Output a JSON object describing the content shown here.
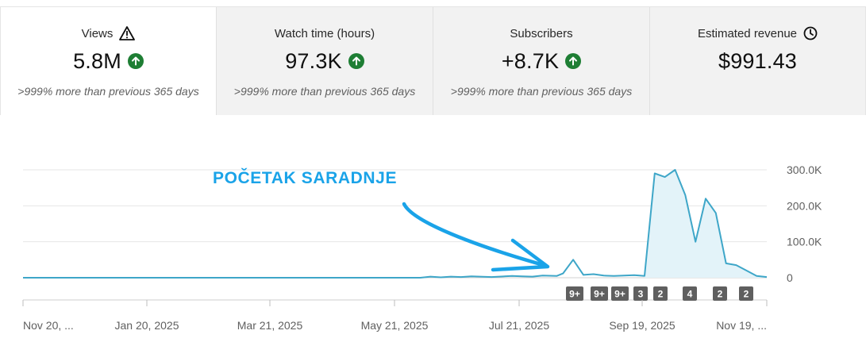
{
  "cards": [
    {
      "title": "Views",
      "title_icon": "warning-icon",
      "value": "5.8M",
      "trend_icon": "arrow-up-icon",
      "sub": ">999% more than previous 365 days"
    },
    {
      "title": "Watch time (hours)",
      "value": "97.3K",
      "trend_icon": "arrow-up-icon",
      "sub": ">999% more than previous 365 days"
    },
    {
      "title": "Subscribers",
      "value": "+8.7K",
      "trend_icon": "arrow-up-icon",
      "sub": ">999% more than previous 365 days"
    },
    {
      "title": "Estimated revenue",
      "title_icon": "clock-icon",
      "value": "$991.43"
    }
  ],
  "annotation": {
    "text": "POČETAK SARADNJE"
  },
  "colors": {
    "line": "#3ea6c8",
    "fill": "#e3f3f9",
    "annotation": "#1aa3e8",
    "trend_up": "#1e7e34",
    "badge": "#606060"
  },
  "chart_data": {
    "type": "line",
    "y_ticks": [
      "300.0K",
      "200.0K",
      "100.0K",
      "0"
    ],
    "ylim": [
      0,
      300000
    ],
    "x_ticks": [
      "Nov 20, ...",
      "Jan 20, 2025",
      "Mar 21, 2025",
      "May 21, 2025",
      "Jul 21, 2025",
      "Sep 19, 2025",
      "Nov 19, ..."
    ],
    "series": [
      {
        "x": [
          0,
          20,
          40,
          60,
          80,
          100,
          120,
          140,
          160,
          180,
          195,
          200,
          205,
          210,
          215,
          220,
          230,
          240,
          245,
          250,
          255,
          262,
          265,
          270,
          275,
          280,
          285,
          290,
          295,
          300,
          305,
          310,
          315,
          320,
          325,
          330,
          335,
          340,
          345,
          350,
          355,
          360,
          365
        ],
        "values": [
          0,
          0,
          0,
          0,
          0,
          0,
          0,
          0,
          0,
          0,
          0,
          3000,
          1000,
          3000,
          2000,
          4000,
          2000,
          5000,
          4000,
          3000,
          6000,
          5000,
          12000,
          50000,
          8000,
          10000,
          6000,
          5000,
          6000,
          7000,
          5000,
          290000,
          280000,
          300000,
          230000,
          100000,
          220000,
          180000,
          40000,
          35000,
          20000,
          5000,
          2000
        ]
      }
    ],
    "event_badges": [
      "9+",
      "9+",
      "9+",
      "3",
      "2",
      "4",
      "2",
      "2"
    ],
    "grid": true
  }
}
